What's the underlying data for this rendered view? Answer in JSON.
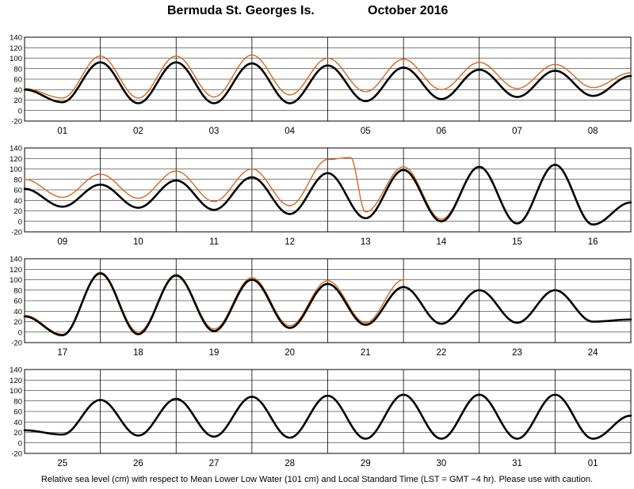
{
  "title": {
    "station": "Bermuda St. Georges Is.",
    "period": "October   2016"
  },
  "footer": "Relative sea level (cm) with respect to Mean Lower Low Water (101 cm) and Local Standard Time (LST = GMT −4 hr). Please use with caution.",
  "colors": {
    "predicted": "#000000",
    "observed": "#d2691e",
    "grid": "#000000",
    "background": "#ffffff"
  },
  "chart_data": [
    {
      "type": "line",
      "ylim": [
        -20,
        140
      ],
      "yticks": [
        -20,
        0,
        20,
        40,
        60,
        80,
        100,
        120,
        140
      ],
      "day_labels": [
        "01",
        "02",
        "03",
        "04",
        "05",
        "06",
        "07",
        "08"
      ],
      "grid": true,
      "series": [
        {
          "key": "predicted",
          "points": [
            [
              0,
              40
            ],
            [
              0.5,
              16
            ],
            [
              1,
              92
            ],
            [
              1.5,
              14
            ],
            [
              2,
              92
            ],
            [
              2.5,
              14
            ],
            [
              3,
              90
            ],
            [
              3.5,
              14
            ],
            [
              4,
              86
            ],
            [
              4.5,
              18
            ],
            [
              5,
              82
            ],
            [
              5.5,
              22
            ],
            [
              6,
              78
            ],
            [
              6.5,
              26
            ],
            [
              7,
              76
            ],
            [
              7.5,
              28
            ],
            [
              8,
              66
            ]
          ]
        },
        {
          "key": "observed",
          "points": [
            [
              0,
              42
            ],
            [
              0.5,
              24
            ],
            [
              1,
              104
            ],
            [
              1.5,
              24
            ],
            [
              2,
              104
            ],
            [
              2.5,
              26
            ],
            [
              3,
              106
            ],
            [
              3.5,
              30
            ],
            [
              4,
              100
            ],
            [
              4.5,
              36
            ],
            [
              5,
              98
            ],
            [
              5.5,
              40
            ],
            [
              6,
              92
            ],
            [
              6.5,
              42
            ],
            [
              7,
              88
            ],
            [
              7.5,
              44
            ],
            [
              8,
              72
            ]
          ]
        }
      ]
    },
    {
      "type": "line",
      "ylim": [
        -20,
        140
      ],
      "yticks": [
        -20,
        0,
        20,
        40,
        60,
        80,
        100,
        120,
        140
      ],
      "day_labels": [
        "09",
        "10",
        "11",
        "12",
        "13",
        "14",
        "15",
        "16"
      ],
      "grid": true,
      "series": [
        {
          "key": "predicted",
          "points": [
            [
              0,
              62
            ],
            [
              0.5,
              28
            ],
            [
              1,
              70
            ],
            [
              1.5,
              26
            ],
            [
              2,
              78
            ],
            [
              2.5,
              22
            ],
            [
              3,
              84
            ],
            [
              3.5,
              14
            ],
            [
              4,
              92
            ],
            [
              4.5,
              6
            ],
            [
              5,
              98
            ],
            [
              5.5,
              0
            ],
            [
              6,
              104
            ],
            [
              6.5,
              -4
            ],
            [
              7,
              108
            ],
            [
              7.5,
              -6
            ],
            [
              8,
              36
            ]
          ]
        },
        {
          "key": "observed",
          "points": [
            [
              0,
              80
            ],
            [
              0.5,
              46
            ],
            [
              1,
              90
            ],
            [
              1.5,
              44
            ],
            [
              2,
              96
            ],
            [
              2.5,
              38
            ],
            [
              3,
              100
            ],
            [
              3.5,
              30
            ],
            [
              4,
              118
            ],
            [
              4.3,
              122
            ],
            [
              4.5,
              18
            ],
            [
              5,
              104
            ],
            [
              5.5,
              4
            ],
            [
              6,
              104
            ],
            [
              6.5,
              -4
            ],
            [
              7,
              108
            ],
            [
              7.5,
              -6
            ],
            [
              8,
              36
            ]
          ]
        }
      ]
    },
    {
      "type": "line",
      "ylim": [
        -20,
        140
      ],
      "yticks": [
        -20,
        0,
        20,
        40,
        60,
        80,
        100,
        120,
        140
      ],
      "day_labels": [
        "17",
        "18",
        "19",
        "20",
        "21",
        "22",
        "23",
        "24"
      ],
      "grid": true,
      "series": [
        {
          "key": "predicted",
          "points": [
            [
              0,
              30
            ],
            [
              0.5,
              -6
            ],
            [
              1,
              112
            ],
            [
              1.5,
              -4
            ],
            [
              2,
              108
            ],
            [
              2.5,
              2
            ],
            [
              3,
              100
            ],
            [
              3.5,
              8
            ],
            [
              4,
              92
            ],
            [
              4.5,
              14
            ],
            [
              5,
              86
            ],
            [
              5.5,
              16
            ],
            [
              6,
              80
            ],
            [
              6.5,
              18
            ],
            [
              7,
              80
            ],
            [
              7.5,
              20
            ],
            [
              8,
              24
            ]
          ]
        },
        {
          "key": "observed",
          "points": [
            [
              0,
              32
            ],
            [
              0.5,
              -4
            ],
            [
              1,
              114
            ],
            [
              1.5,
              0
            ],
            [
              2,
              110
            ],
            [
              2.5,
              6
            ],
            [
              3,
              104
            ],
            [
              3.5,
              12
            ],
            [
              4,
              98
            ],
            [
              4.5,
              18
            ],
            [
              5,
              100
            ]
          ]
        }
      ]
    },
    {
      "type": "line",
      "ylim": [
        -20,
        140
      ],
      "yticks": [
        -20,
        0,
        20,
        40,
        60,
        80,
        100,
        120,
        140
      ],
      "day_labels": [
        "25",
        "26",
        "27",
        "28",
        "29",
        "30",
        "31",
        "01"
      ],
      "grid": true,
      "series": [
        {
          "key": "predicted",
          "points": [
            [
              0,
              24
            ],
            [
              0.5,
              16
            ],
            [
              1,
              82
            ],
            [
              1.5,
              14
            ],
            [
              2,
              84
            ],
            [
              2.5,
              12
            ],
            [
              3,
              88
            ],
            [
              3.5,
              10
            ],
            [
              4,
              90
            ],
            [
              4.5,
              8
            ],
            [
              5,
              92
            ],
            [
              5.5,
              8
            ],
            [
              6,
              92
            ],
            [
              6.5,
              8
            ],
            [
              7,
              92
            ],
            [
              7.5,
              8
            ],
            [
              8,
              52
            ]
          ]
        }
      ]
    }
  ]
}
